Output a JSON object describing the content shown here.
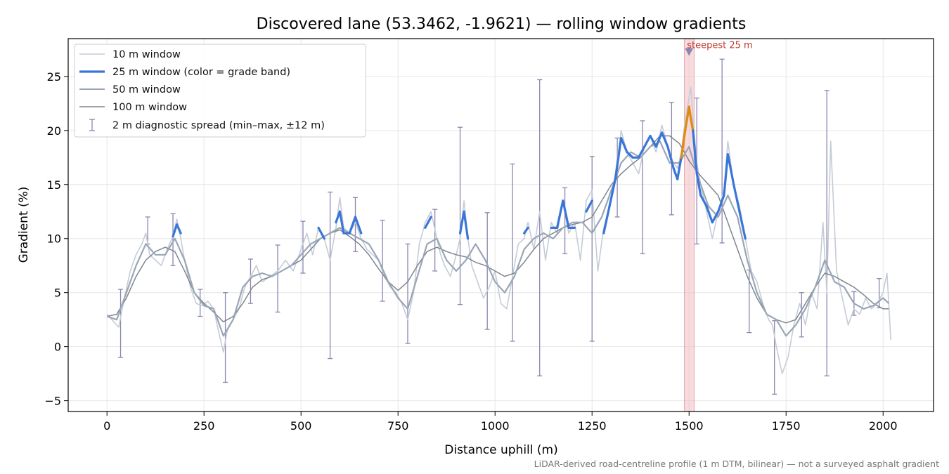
{
  "chart_data": {
    "type": "line",
    "title": "Discovered lane (53.3462, -1.9621) — rolling window gradients",
    "xlabel": "Distance uphill (m)",
    "ylabel": "Gradient (%)",
    "xlim": [
      -100,
      2130
    ],
    "ylim": [
      -6,
      28.5
    ],
    "xticks": [
      0,
      250,
      500,
      750,
      1000,
      1250,
      1500,
      1750,
      2000
    ],
    "yticks": [
      -5,
      0,
      5,
      10,
      15,
      20,
      25
    ],
    "grid": true,
    "legend_position": "top-left",
    "footnote": "LiDAR-derived road-centreline profile (1 m DTM, bilinear) — not a surveyed asphalt gradient",
    "annotations": [
      {
        "text": "steepest 25 m",
        "x": 1500,
        "y": 27.3,
        "shaded_range": [
          1488,
          1513
        ]
      }
    ],
    "grade_band_colors": {
      "moderate": "#3a76d8",
      "steep": "#e08a0c"
    },
    "series": [
      {
        "name": "10 m window",
        "color": "#c5ccd6",
        "x": [
          0,
          15,
          30,
          45,
          60,
          75,
          90,
          100,
          110,
          125,
          140,
          155,
          170,
          180,
          190,
          200,
          215,
          230,
          245,
          260,
          275,
          290,
          300,
          310,
          325,
          340,
          355,
          370,
          385,
          400,
          420,
          440,
          460,
          480,
          500,
          515,
          530,
          545,
          560,
          575,
          590,
          600,
          610,
          625,
          640,
          655,
          670,
          685,
          700,
          715,
          730,
          745,
          760,
          775,
          790,
          805,
          820,
          835,
          850,
          860,
          870,
          885,
          900,
          910,
          920,
          930,
          940,
          955,
          970,
          985,
          1000,
          1015,
          1030,
          1045,
          1060,
          1075,
          1085,
          1100,
          1115,
          1130,
          1145,
          1160,
          1175,
          1190,
          1205,
          1220,
          1235,
          1250,
          1265,
          1280,
          1295,
          1310,
          1325,
          1340,
          1355,
          1370,
          1385,
          1400,
          1415,
          1430,
          1445,
          1460,
          1470,
          1480,
          1490,
          1500,
          1505,
          1510,
          1520,
          1530,
          1545,
          1560,
          1575,
          1590,
          1600,
          1615,
          1630,
          1645,
          1660,
          1675,
          1690,
          1705,
          1715,
          1725,
          1740,
          1755,
          1770,
          1785,
          1800,
          1815,
          1830,
          1845,
          1855,
          1865,
          1880,
          1895,
          1910,
          1925,
          1940,
          1955,
          1970,
          1985,
          2000,
          2010,
          2020
        ],
        "y": [
          3.0,
          2.4,
          1.8,
          4.5,
          7.0,
          8.5,
          9.5,
          10.5,
          8.5,
          8.0,
          7.5,
          9.0,
          10.2,
          11.8,
          10.0,
          8.0,
          5.5,
          4.0,
          3.8,
          4.2,
          3.5,
          1.0,
          -0.5,
          1.5,
          2.5,
          3.5,
          5.5,
          6.5,
          7.5,
          6.0,
          6.5,
          7.0,
          8.0,
          7.0,
          9.0,
          10.5,
          8.5,
          11.0,
          10.0,
          8.0,
          11.0,
          13.8,
          11.0,
          10.5,
          11.5,
          10.0,
          9.0,
          8.5,
          8.0,
          6.5,
          5.5,
          5.0,
          4.0,
          2.5,
          5.0,
          9.5,
          11.5,
          12.5,
          10.0,
          8.5,
          7.5,
          6.5,
          8.5,
          10.0,
          13.5,
          10.0,
          7.5,
          6.0,
          4.5,
          5.5,
          7.0,
          4.0,
          3.5,
          6.5,
          9.5,
          10.0,
          11.5,
          9.0,
          12.5,
          8.0,
          11.5,
          10.5,
          13.5,
          10.5,
          11.5,
          8.0,
          13.5,
          14.5,
          7.0,
          11.0,
          13.0,
          16.0,
          20.0,
          18.0,
          17.0,
          16.0,
          18.5,
          19.5,
          18.0,
          20.5,
          18.5,
          17.0,
          16.5,
          18.0,
          21.0,
          23.0,
          24.0,
          21.0,
          17.0,
          15.0,
          12.5,
          10.0,
          12.5,
          14.5,
          19.0,
          15.0,
          13.0,
          10.0,
          7.0,
          6.0,
          4.0,
          2.5,
          2.0,
          0.0,
          -2.5,
          -1.0,
          2.0,
          4.0,
          2.0,
          5.0,
          3.5,
          11.5,
          5.0,
          19.0,
          7.0,
          4.5,
          2.0,
          3.5,
          3.0,
          4.5,
          3.5,
          4.0,
          5.0,
          6.8,
          0.6
        ]
      },
      {
        "name": "25 m window (color = grade band)",
        "color": "#3a76d8",
        "x": [
          0,
          15,
          30,
          45,
          60,
          75,
          90,
          100,
          110,
          125,
          140,
          155,
          170,
          180,
          190,
          200,
          215,
          230,
          245,
          260,
          275,
          290,
          300,
          310,
          325,
          340,
          355,
          370,
          385,
          400,
          420,
          440,
          460,
          480,
          500,
          515,
          530,
          545,
          560,
          575,
          590,
          600,
          610,
          625,
          640,
          655,
          670,
          685,
          700,
          715,
          730,
          745,
          760,
          775,
          790,
          805,
          820,
          835,
          850,
          860,
          870,
          885,
          900,
          910,
          920,
          930,
          940,
          955,
          970,
          985,
          1000,
          1015,
          1030,
          1045,
          1060,
          1075,
          1085,
          1100,
          1115,
          1130,
          1145,
          1160,
          1175,
          1190,
          1205,
          1220,
          1235,
          1250,
          1265,
          1280,
          1295,
          1310,
          1325,
          1340,
          1355,
          1370,
          1385,
          1400,
          1415,
          1430,
          1445,
          1460,
          1470,
          1480,
          1490,
          1500,
          1505,
          1510,
          1520,
          1530,
          1545,
          1560,
          1575,
          1590,
          1600,
          1615,
          1630,
          1645,
          1660,
          1675,
          1690,
          1705,
          1715,
          1725,
          1740,
          1755,
          1770,
          1785,
          1800,
          1815,
          1830,
          1845,
          1855,
          1865,
          1880,
          1895,
          1910,
          1925,
          1940,
          1955,
          1970,
          1985,
          2000,
          2010,
          2020
        ],
        "y": [
          2.8,
          2.5,
          2.0,
          4.0,
          6.5,
          8.0,
          9.5,
          10.0,
          8.5,
          8.0,
          7.8,
          8.8,
          10.2,
          11.3,
          10.5,
          8.0,
          5.5,
          4.0,
          3.8,
          3.8,
          3.6,
          1.2,
          0.0,
          1.5,
          2.5,
          3.8,
          5.8,
          6.5,
          7.0,
          6.5,
          6.5,
          7.0,
          7.5,
          7.0,
          8.5,
          10.0,
          9.0,
          11.0,
          10.0,
          9.5,
          11.5,
          12.5,
          10.5,
          10.5,
          12.0,
          10.5,
          9.5,
          8.5,
          8.0,
          6.5,
          5.5,
          5.0,
          4.0,
          3.0,
          5.0,
          9.0,
          11.0,
          12.0,
          9.8,
          8.5,
          7.5,
          6.5,
          8.5,
          10.5,
          12.5,
          10.0,
          7.5,
          6.0,
          5.0,
          5.5,
          6.5,
          4.5,
          4.0,
          6.5,
          9.0,
          10.5,
          11.0,
          9.5,
          11.5,
          9.0,
          11.0,
          11.0,
          13.5,
          11.0,
          11.0,
          9.0,
          12.5,
          13.5,
          9.0,
          10.5,
          13.0,
          15.5,
          19.3,
          18.0,
          17.5,
          17.5,
          18.5,
          19.5,
          18.5,
          19.8,
          18.5,
          16.5,
          15.5,
          17.5,
          20.0,
          22.2,
          21.0,
          20.0,
          16.0,
          14.0,
          13.0,
          11.5,
          12.5,
          14.0,
          17.8,
          15.0,
          12.5,
          10.0,
          7.0,
          6.0,
          4.0,
          3.0,
          2.5,
          0.5,
          -1.0,
          -0.5,
          2.0,
          4.0,
          2.5,
          4.5,
          4.0,
          9.0,
          5.0,
          11.0,
          6.5,
          4.5,
          2.5,
          3.5,
          3.2,
          4.0,
          3.5,
          3.8,
          4.5,
          6.0,
          4.0
        ]
      },
      {
        "name": "50 m window",
        "color": "#9aa6b6",
        "x": [
          0,
          25,
          50,
          75,
          100,
          125,
          150,
          175,
          200,
          225,
          250,
          275,
          300,
          325,
          350,
          375,
          400,
          425,
          450,
          475,
          500,
          525,
          550,
          575,
          600,
          625,
          650,
          675,
          700,
          725,
          750,
          775,
          800,
          825,
          850,
          875,
          900,
          925,
          950,
          975,
          1000,
          1025,
          1050,
          1075,
          1100,
          1125,
          1150,
          1175,
          1200,
          1225,
          1250,
          1275,
          1300,
          1325,
          1350,
          1375,
          1400,
          1425,
          1450,
          1475,
          1500,
          1525,
          1550,
          1575,
          1600,
          1625,
          1650,
          1675,
          1700,
          1725,
          1750,
          1775,
          1800,
          1825,
          1850,
          1875,
          1900,
          1925,
          1950,
          1975,
          2000,
          2015
        ],
        "y": [
          2.8,
          2.5,
          5.0,
          7.5,
          9.5,
          8.5,
          8.5,
          10.0,
          8.0,
          5.0,
          3.8,
          3.5,
          1.0,
          2.5,
          5.5,
          6.5,
          6.8,
          6.5,
          7.0,
          7.5,
          8.5,
          9.5,
          10.0,
          10.5,
          11.0,
          10.5,
          10.0,
          9.5,
          8.0,
          6.0,
          4.5,
          3.5,
          6.5,
          9.5,
          10.0,
          8.0,
          7.0,
          8.0,
          9.5,
          8.0,
          6.0,
          5.0,
          6.5,
          9.0,
          10.0,
          10.5,
          10.0,
          11.0,
          11.5,
          11.5,
          10.5,
          12.0,
          14.5,
          17.0,
          18.0,
          17.5,
          18.5,
          19.0,
          17.0,
          17.0,
          18.5,
          15.5,
          13.0,
          12.0,
          14.0,
          12.0,
          8.0,
          5.0,
          3.0,
          2.5,
          1.0,
          2.0,
          3.5,
          5.5,
          8.0,
          6.0,
          5.5,
          4.0,
          3.5,
          3.8,
          4.5,
          4.0
        ]
      },
      {
        "name": "100 m window",
        "color": "#7d8590",
        "x": [
          0,
          25,
          50,
          75,
          100,
          125,
          150,
          175,
          200,
          225,
          250,
          275,
          300,
          325,
          350,
          375,
          400,
          425,
          450,
          475,
          500,
          525,
          550,
          575,
          600,
          625,
          650,
          675,
          700,
          725,
          750,
          775,
          800,
          825,
          850,
          875,
          900,
          925,
          950,
          975,
          1000,
          1025,
          1050,
          1075,
          1100,
          1125,
          1150,
          1175,
          1200,
          1225,
          1250,
          1275,
          1300,
          1325,
          1350,
          1375,
          1400,
          1425,
          1450,
          1475,
          1500,
          1525,
          1550,
          1575,
          1600,
          1625,
          1650,
          1675,
          1700,
          1725,
          1750,
          1775,
          1800,
          1825,
          1850,
          1875,
          1900,
          1925,
          1950,
          1975,
          2000,
          2015
        ],
        "y": [
          2.8,
          3.0,
          4.5,
          6.5,
          8.0,
          8.8,
          9.2,
          8.8,
          7.0,
          5.0,
          4.0,
          3.2,
          2.3,
          2.8,
          4.0,
          5.5,
          6.2,
          6.5,
          7.0,
          7.5,
          8.0,
          9.0,
          10.0,
          10.5,
          10.8,
          10.2,
          9.5,
          8.5,
          7.2,
          6.0,
          5.2,
          6.0,
          7.5,
          8.8,
          9.2,
          8.8,
          8.5,
          8.3,
          7.8,
          7.5,
          7.0,
          6.5,
          6.8,
          7.8,
          9.0,
          10.0,
          10.5,
          11.0,
          11.3,
          11.5,
          12.0,
          13.5,
          15.0,
          16.0,
          16.8,
          17.5,
          18.5,
          19.5,
          19.5,
          18.8,
          17.2,
          16.0,
          15.0,
          14.0,
          11.5,
          9.0,
          6.5,
          4.5,
          3.0,
          2.5,
          2.2,
          2.5,
          4.0,
          5.5,
          6.8,
          6.5,
          6.0,
          5.5,
          4.8,
          4.0,
          3.5,
          3.5
        ]
      },
      {
        "name": "2 m diagnostic spread (min–max, ±12 m)",
        "color": "#8a86b0",
        "points": [
          {
            "x": 35,
            "low": -1,
            "high": 5.3
          },
          {
            "x": 105,
            "low": 9.5,
            "high": 12
          },
          {
            "x": 170,
            "low": 7.5,
            "high": 12.3
          },
          {
            "x": 240,
            "low": 2.8,
            "high": 5.3
          },
          {
            "x": 305,
            "low": -3.3,
            "high": 5
          },
          {
            "x": 370,
            "low": 4,
            "high": 8.1
          },
          {
            "x": 440,
            "low": 3.2,
            "high": 9.4
          },
          {
            "x": 505,
            "low": 6.8,
            "high": 11.6
          },
          {
            "x": 575,
            "low": -1.1,
            "high": 14.3
          },
          {
            "x": 640,
            "low": 8.8,
            "high": 13.8
          },
          {
            "x": 710,
            "low": 4.2,
            "high": 11.7
          },
          {
            "x": 775,
            "low": 0.3,
            "high": 9.5
          },
          {
            "x": 845,
            "low": 7,
            "high": 12.7
          },
          {
            "x": 910,
            "low": 3.9,
            "high": 20.3
          },
          {
            "x": 980,
            "low": 1.6,
            "high": 12.4
          },
          {
            "x": 1045,
            "low": 0.5,
            "high": 16.9
          },
          {
            "x": 1115,
            "low": -2.7,
            "high": 24.7
          },
          {
            "x": 1180,
            "low": 8.6,
            "high": 14.7
          },
          {
            "x": 1250,
            "low": 0.5,
            "high": 17.6
          },
          {
            "x": 1315,
            "low": 12,
            "high": 19.3
          },
          {
            "x": 1380,
            "low": 8.6,
            "high": 20.9
          },
          {
            "x": 1455,
            "low": 12.2,
            "high": 22.6
          },
          {
            "x": 1520,
            "low": 9.5,
            "high": 23
          },
          {
            "x": 1585,
            "low": 9.6,
            "high": 26.6
          },
          {
            "x": 1655,
            "low": 1.3,
            "high": 7.1
          },
          {
            "x": 1720,
            "low": -4.4,
            "high": 2.4
          },
          {
            "x": 1790,
            "low": 0.9,
            "high": 5
          },
          {
            "x": 1855,
            "low": -2.7,
            "high": 23.7
          },
          {
            "x": 1925,
            "low": 2.9,
            "high": 5.1
          },
          {
            "x": 1990,
            "low": 3.6,
            "high": 6.3
          }
        ]
      }
    ]
  }
}
